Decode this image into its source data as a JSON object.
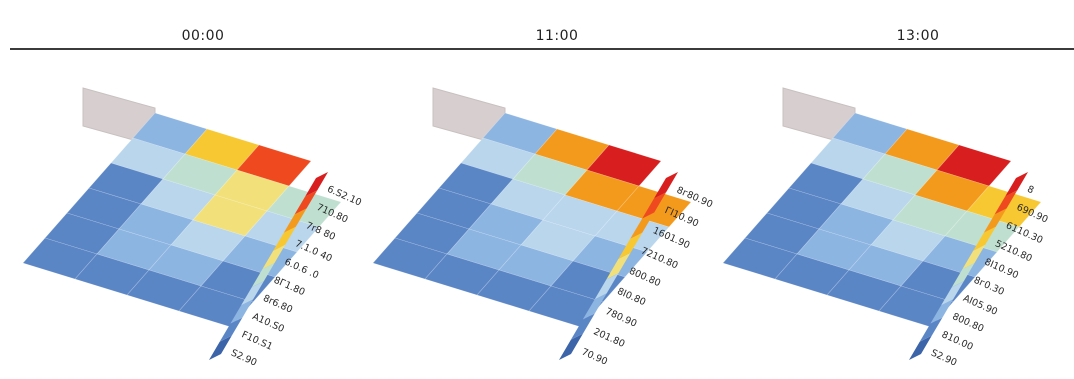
{
  "chart_data": [
    {
      "type": "heatmap",
      "title": "00:00",
      "values": [
        [
          0.18,
          0.62,
          0.92,
          null
        ],
        [
          0.34,
          0.44,
          0.52,
          0.48
        ],
        [
          0.08,
          0.3,
          0.54,
          0.34
        ],
        [
          0.14,
          0.24,
          0.28,
          0.26
        ],
        [
          0.12,
          0.18,
          0.2,
          0.16
        ],
        [
          0.1,
          0.14,
          0.14,
          0.12
        ]
      ],
      "colorbar_labels": [
        "S2.90",
        "F10.S1",
        "A10.S0",
        "8r6.80",
        "8Г1.80",
        "6.0.6 .0",
        "7.1.0 40",
        "7r8 80",
        "710.80",
        "6.S2.10"
      ]
    },
    {
      "type": "heatmap",
      "title": "11:00",
      "values": [
        [
          0.18,
          0.74,
          0.96,
          null
        ],
        [
          0.34,
          0.44,
          0.74,
          0.74
        ],
        [
          0.08,
          0.3,
          0.38,
          0.36
        ],
        [
          0.14,
          0.24,
          0.28,
          0.26
        ],
        [
          0.12,
          0.18,
          0.2,
          0.16
        ],
        [
          0.1,
          0.14,
          0.14,
          0.12
        ]
      ],
      "colorbar_labels": [
        "70.90",
        "201.80",
        "780.90",
        "8I0.80",
        "800.80",
        "7210.80",
        "1601.90",
        "ГI10.90",
        "8г80.90"
      ]
    },
    {
      "type": "heatmap",
      "title": "13:00",
      "values": [
        [
          0.18,
          0.74,
          0.96,
          null
        ],
        [
          0.34,
          0.4,
          0.76,
          0.72
        ],
        [
          0.08,
          0.3,
          0.42,
          0.42
        ],
        [
          0.14,
          0.24,
          0.28,
          0.26
        ],
        [
          0.12,
          0.18,
          0.2,
          0.16
        ],
        [
          0.1,
          0.14,
          0.14,
          0.12
        ]
      ],
      "colorbar_labels": [
        "S2.90",
        "810.00",
        "800.80",
        "AI05.90",
        "8г0.30",
        "8I10.90",
        "5210.80",
        "6110.30",
        "690.90",
        "8"
      ]
    }
  ],
  "colors": {
    "scale": [
      "#3c64a8",
      "#5b86c6",
      "#8db5e2",
      "#b9d6ec",
      "#bfe0d0",
      "#f2e17a",
      "#f7c832",
      "#f39a1d",
      "#ef4a1f",
      "#d81e1e"
    ],
    "box": "#d7cfcf",
    "rule": "#3b3b3b"
  }
}
